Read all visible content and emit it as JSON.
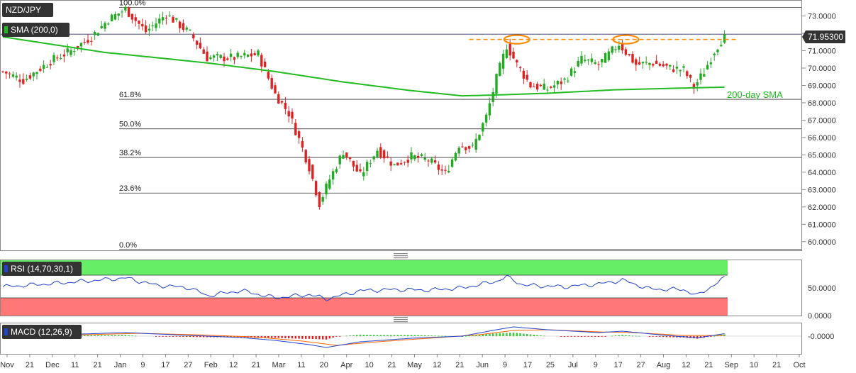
{
  "symbol": "NZD/JPY",
  "price_tag": "71.95300",
  "indicators": {
    "sma": "SMA (200,0)",
    "rsi": "RSI (14,70,30,1)",
    "macd": "MACD (12,26,9)"
  },
  "annotations": {
    "sma_label": "200-day SMA",
    "fib_levels": [
      {
        "label": "100.0%",
        "value": 73.5
      },
      {
        "label": "61.8%",
        "value": 68.2
      },
      {
        "label": "50.0%",
        "value": 66.5
      },
      {
        "label": "38.2%",
        "value": 64.85
      },
      {
        "label": "23.6%",
        "value": 62.8
      },
      {
        "label": "0.0%",
        "value": 59.55
      }
    ],
    "resistance_value": 71.65
  },
  "colors": {
    "bull": "#22aa22",
    "bear": "#dd2222",
    "sma": "#22bb22",
    "resistance": "#ff8800",
    "rsi_line": "#2244cc",
    "rsi_overbought": "#66ee66",
    "rsi_oversold": "#ff7777",
    "macd_line": "#2244cc",
    "signal_line": "#ff6600",
    "tag_bg": "#333333"
  },
  "chart_data": {
    "type": "candlestick",
    "price_axis": {
      "ticks": [
        "73.0000",
        "72.0000",
        "71.0000",
        "70.0000",
        "69.0000",
        "68.0000",
        "67.0000",
        "66.0000",
        "65.0000",
        "64.0000",
        "63.0000",
        "62.0000",
        "61.0000",
        "60.0000"
      ],
      "ylim": [
        59.5,
        73.8
      ]
    },
    "rsi_axis": {
      "ticks": [
        "50.0000",
        "0.0000"
      ],
      "ylim": [
        0,
        100
      ],
      "overbought": 70,
      "oversold": 30
    },
    "macd_axis": {
      "ticks": [
        "-0.0000"
      ]
    },
    "x_ticks": [
      "Nov",
      "21",
      "Dec",
      "11",
      "21",
      "Jan",
      "9",
      "17",
      "27",
      "Feb",
      "12",
      "21",
      "Mar",
      "11",
      "20",
      "Apr",
      "10",
      "21",
      "May",
      "12",
      "21",
      "Jun",
      "9",
      "17",
      "25",
      "Jul",
      "9",
      "17",
      "27",
      "Aug",
      "12",
      "21",
      "Sep",
      "10",
      "21",
      "Oct"
    ],
    "anchors": [
      {
        "t": 0,
        "v": 69.8
      },
      {
        "t": 6,
        "v": 69.3
      },
      {
        "t": 14,
        "v": 70.4
      },
      {
        "t": 20,
        "v": 71.0
      },
      {
        "t": 26,
        "v": 71.8
      },
      {
        "t": 31,
        "v": 72.8
      },
      {
        "t": 36,
        "v": 73.4
      },
      {
        "t": 42,
        "v": 72.1
      },
      {
        "t": 48,
        "v": 73.1
      },
      {
        "t": 55,
        "v": 72.0
      },
      {
        "t": 60,
        "v": 70.6
      },
      {
        "t": 68,
        "v": 70.6
      },
      {
        "t": 75,
        "v": 70.8
      },
      {
        "t": 80,
        "v": 68.5
      },
      {
        "t": 84,
        "v": 67.4
      },
      {
        "t": 87,
        "v": 65.9
      },
      {
        "t": 90,
        "v": 64.3
      },
      {
        "t": 93,
        "v": 62.2
      },
      {
        "t": 96,
        "v": 63.6
      },
      {
        "t": 100,
        "v": 65.2
      },
      {
        "t": 105,
        "v": 63.8
      },
      {
        "t": 110,
        "v": 65.3
      },
      {
        "t": 115,
        "v": 64.4
      },
      {
        "t": 120,
        "v": 64.9
      },
      {
        "t": 125,
        "v": 64.7
      },
      {
        "t": 130,
        "v": 63.9
      },
      {
        "t": 134,
        "v": 65.6
      },
      {
        "t": 138,
        "v": 65.4
      },
      {
        "t": 142,
        "v": 67.2
      },
      {
        "t": 145,
        "v": 69.4
      },
      {
        "t": 148,
        "v": 71.3
      },
      {
        "t": 151,
        "v": 70.2
      },
      {
        "t": 155,
        "v": 69.0
      },
      {
        "t": 160,
        "v": 68.8
      },
      {
        "t": 165,
        "v": 69.3
      },
      {
        "t": 170,
        "v": 70.5
      },
      {
        "t": 175,
        "v": 70.2
      },
      {
        "t": 181,
        "v": 71.4
      },
      {
        "t": 186,
        "v": 70.2
      },
      {
        "t": 191,
        "v": 70.3
      },
      {
        "t": 196,
        "v": 70.0
      },
      {
        "t": 200,
        "v": 69.9
      },
      {
        "t": 203,
        "v": 68.9
      },
      {
        "t": 206,
        "v": 69.8
      },
      {
        "t": 209,
        "v": 71.0
      },
      {
        "t": 212,
        "v": 71.9
      }
    ],
    "sma": [
      {
        "t": 0,
        "v": 71.8
      },
      {
        "t": 30,
        "v": 70.9
      },
      {
        "t": 60,
        "v": 70.3
      },
      {
        "t": 80,
        "v": 69.8
      },
      {
        "t": 100,
        "v": 69.2
      },
      {
        "t": 120,
        "v": 68.7
      },
      {
        "t": 135,
        "v": 68.4
      },
      {
        "t": 145,
        "v": 68.45
      },
      {
        "t": 160,
        "v": 68.55
      },
      {
        "t": 180,
        "v": 68.75
      },
      {
        "t": 200,
        "v": 68.85
      },
      {
        "t": 212,
        "v": 68.9
      }
    ],
    "resistance": {
      "value": 71.65,
      "t_start": 137,
      "t_end": 216,
      "circles_t": [
        151,
        183
      ]
    },
    "rsi": [
      {
        "t": 0,
        "v": 52
      },
      {
        "t": 15,
        "v": 58
      },
      {
        "t": 30,
        "v": 65
      },
      {
        "t": 36,
        "v": 68
      },
      {
        "t": 45,
        "v": 55
      },
      {
        "t": 55,
        "v": 50
      },
      {
        "t": 60,
        "v": 36
      },
      {
        "t": 70,
        "v": 45
      },
      {
        "t": 80,
        "v": 32
      },
      {
        "t": 90,
        "v": 38
      },
      {
        "t": 95,
        "v": 30
      },
      {
        "t": 105,
        "v": 45
      },
      {
        "t": 115,
        "v": 47
      },
      {
        "t": 125,
        "v": 46
      },
      {
        "t": 135,
        "v": 50
      },
      {
        "t": 145,
        "v": 62
      },
      {
        "t": 148,
        "v": 70
      },
      {
        "t": 153,
        "v": 55
      },
      {
        "t": 165,
        "v": 52
      },
      {
        "t": 175,
        "v": 57
      },
      {
        "t": 182,
        "v": 64
      },
      {
        "t": 190,
        "v": 48
      },
      {
        "t": 200,
        "v": 47
      },
      {
        "t": 204,
        "v": 36
      },
      {
        "t": 212,
        "v": 68
      }
    ],
    "macd": [
      {
        "t": 0,
        "v": 0.1
      },
      {
        "t": 20,
        "v": 0.25
      },
      {
        "t": 36,
        "v": 0.5
      },
      {
        "t": 55,
        "v": 0.1
      },
      {
        "t": 70,
        "v": -0.2
      },
      {
        "t": 80,
        "v": -0.6
      },
      {
        "t": 90,
        "v": -1.2
      },
      {
        "t": 95,
        "v": -1.6
      },
      {
        "t": 105,
        "v": -0.8
      },
      {
        "t": 120,
        "v": -0.3
      },
      {
        "t": 135,
        "v": 0.0
      },
      {
        "t": 145,
        "v": 0.9
      },
      {
        "t": 150,
        "v": 1.3
      },
      {
        "t": 160,
        "v": 0.9
      },
      {
        "t": 175,
        "v": 0.5
      },
      {
        "t": 182,
        "v": 0.7
      },
      {
        "t": 195,
        "v": 0.1
      },
      {
        "t": 204,
        "v": -0.25
      },
      {
        "t": 212,
        "v": 0.35
      }
    ],
    "signal": [
      {
        "t": 0,
        "v": 0.05
      },
      {
        "t": 25,
        "v": 0.2
      },
      {
        "t": 40,
        "v": 0.4
      },
      {
        "t": 60,
        "v": 0.15
      },
      {
        "t": 75,
        "v": -0.15
      },
      {
        "t": 88,
        "v": -0.7
      },
      {
        "t": 98,
        "v": -1.3
      },
      {
        "t": 110,
        "v": -0.8
      },
      {
        "t": 125,
        "v": -0.3
      },
      {
        "t": 140,
        "v": 0.2
      },
      {
        "t": 150,
        "v": 0.8
      },
      {
        "t": 160,
        "v": 0.9
      },
      {
        "t": 175,
        "v": 0.6
      },
      {
        "t": 185,
        "v": 0.5
      },
      {
        "t": 200,
        "v": 0.1
      },
      {
        "t": 212,
        "v": 0.1
      }
    ]
  }
}
